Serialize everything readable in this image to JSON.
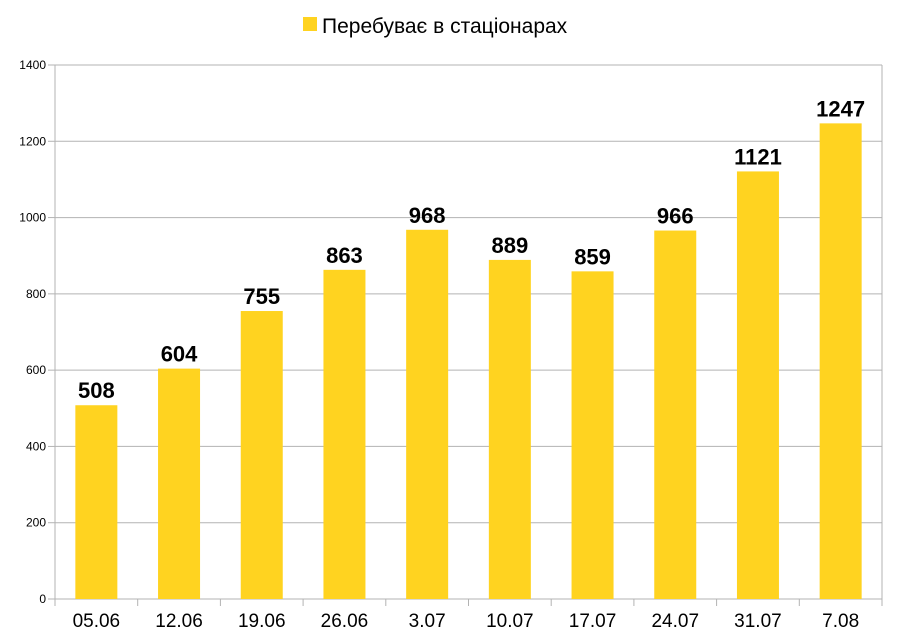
{
  "chart_data": {
    "type": "bar",
    "categories": [
      "05.06",
      "12.06",
      "19.06",
      "26.06",
      "3.07",
      "10.07",
      "17.07",
      "24.07",
      "31.07",
      "7.08"
    ],
    "series": [
      {
        "name": "Перебуває в стаціонарах",
        "values": [
          508,
          604,
          755,
          863,
          968,
          889,
          859,
          966,
          1121,
          1247
        ],
        "color": "#ffd320"
      }
    ],
    "yticks": [
      "0",
      "200",
      "400",
      "600",
      "800",
      "1000",
      "1200",
      "1400"
    ],
    "ylim": [
      0,
      1400
    ],
    "grid": true,
    "legend": "top-center",
    "data_labels": [
      "508",
      "604",
      "755",
      "863",
      "968",
      "889",
      "859",
      "966",
      "1121",
      "1247"
    ]
  }
}
